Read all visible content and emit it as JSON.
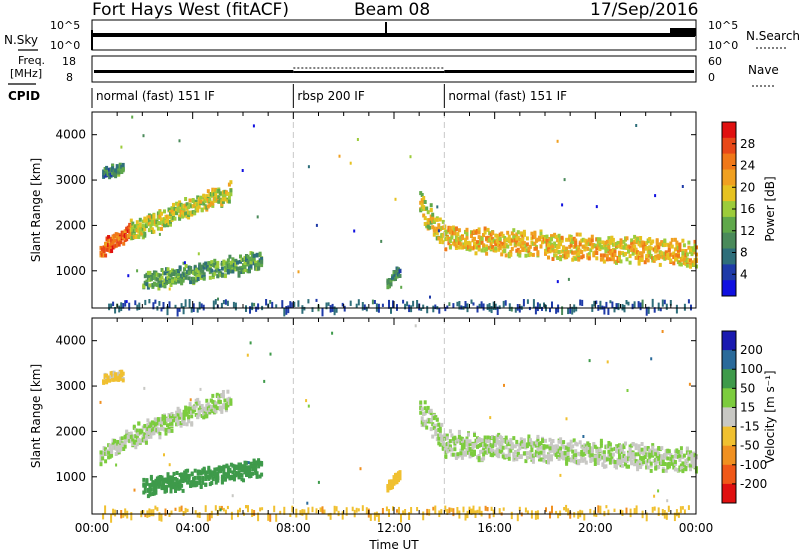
{
  "header": {
    "station": "Fort Hays West (fitACF)",
    "beam": "Beam 08",
    "date": "17/Sep/2016"
  },
  "top_panel": {
    "nsky_label": "N.Sky",
    "nsky_ticks": [
      "10^5",
      "10^0"
    ],
    "nsearch_label": "N.Search",
    "nsearch_ticks": [
      "10^5",
      "10^0"
    ],
    "freq_label": [
      "Freq.",
      "[MHz]"
    ],
    "freq_ticks": [
      "18",
      "8"
    ],
    "nave_label": "Nave",
    "nave_ticks": [
      "60",
      "0"
    ],
    "cpid_label": "CPID"
  },
  "cpid_segments": [
    {
      "start_h": 0,
      "end_h": 8,
      "label": "normal (fast) 151 IF"
    },
    {
      "start_h": 8,
      "end_h": 14,
      "label": "rbsp 200 IF"
    },
    {
      "start_h": 14,
      "end_h": 24,
      "label": "normal (fast) 151 IF"
    }
  ],
  "chart_data": [
    {
      "type": "heatmap",
      "panel": "power",
      "xlabel": "",
      "ylabel": "Slant Range [km]",
      "ylim": [
        180,
        4500
      ],
      "xlim_hours": [
        0,
        24
      ],
      "yticks": [
        1000,
        2000,
        3000,
        4000
      ],
      "colorbar": {
        "label": "Power [dB]",
        "range": [
          0,
          32
        ],
        "ticks": [
          4,
          8,
          12,
          16,
          20,
          24,
          28
        ],
        "colors": [
          "#1010e0",
          "#1e3aa8",
          "#2e6e7a",
          "#4a8a5a",
          "#5fa84a",
          "#9ccc3a",
          "#e6c220",
          "#f0a020",
          "#f07818",
          "#e84818",
          "#e01010"
        ]
      },
      "echo_regions": [
        {
          "from_h": 0.3,
          "to_h": 1.5,
          "r_start": 1500,
          "r_end": 1900,
          "half_width": 150,
          "value": 26
        },
        {
          "from_h": 1.5,
          "to_h": 5.5,
          "r_start": 1900,
          "r_end": 2800,
          "half_width": 200,
          "value": 17
        },
        {
          "from_h": 0.4,
          "to_h": 1.2,
          "r_start": 3200,
          "r_end": 3300,
          "half_width": 90,
          "value": 10
        },
        {
          "from_h": 2.0,
          "to_h": 6.7,
          "r_start": 800,
          "r_end": 1250,
          "half_width": 170,
          "value": 12
        },
        {
          "from_h": 11.7,
          "to_h": 12.2,
          "r_start": 800,
          "r_end": 1050,
          "half_width": 100,
          "value": 10
        },
        {
          "from_h": 13.0,
          "to_h": 14.0,
          "r_start": 2500,
          "r_end": 1800,
          "half_width": 280,
          "value": 18
        },
        {
          "from_h": 14.0,
          "to_h": 24.0,
          "r_start": 1750,
          "r_end": 1400,
          "half_width": 250,
          "value": 20
        }
      ],
      "ground_scatter_band": {
        "from_h": 0,
        "to_h": 24,
        "r_max": 380,
        "value": 6
      }
    },
    {
      "type": "heatmap",
      "panel": "velocity",
      "xlabel": "Time UT",
      "ylabel": "Slant Range [km]",
      "ylim": [
        180,
        4500
      ],
      "xlim_hours": [
        0,
        24
      ],
      "yticks": [
        1000,
        2000,
        3000,
        4000
      ],
      "xticks": [
        "00:00",
        "04:00",
        "08:00",
        "12:00",
        "16:00",
        "20:00",
        "00:00"
      ],
      "colorbar": {
        "label": "Velocity [m s^-1]",
        "ticks": [
          200,
          100,
          50,
          15,
          -15,
          -50,
          -100,
          -200
        ],
        "colors": [
          "#1a1ab0",
          "#2a6a9a",
          "#3e9a4a",
          "#7ccc3e",
          "#c8c8c4",
          "#f0c030",
          "#f09020",
          "#f05818",
          "#e01010"
        ]
      },
      "echo_regions": [
        {
          "from_h": 0.3,
          "to_h": 1.5,
          "r_start": 1500,
          "r_end": 1900,
          "half_width": 150,
          "value": 0
        },
        {
          "from_h": 1.5,
          "to_h": 5.5,
          "r_start": 1900,
          "r_end": 2800,
          "half_width": 200,
          "value": 0
        },
        {
          "from_h": 0.4,
          "to_h": 1.2,
          "r_start": 3200,
          "r_end": 3300,
          "half_width": 90,
          "value": -40
        },
        {
          "from_h": 2.0,
          "to_h": 6.7,
          "r_start": 800,
          "r_end": 1250,
          "half_width": 170,
          "value": 60
        },
        {
          "from_h": 11.7,
          "to_h": 12.2,
          "r_start": 800,
          "r_end": 1050,
          "half_width": 100,
          "value": -60
        },
        {
          "from_h": 13.0,
          "to_h": 14.0,
          "r_start": 2500,
          "r_end": 1800,
          "half_width": 280,
          "value": 0
        },
        {
          "from_h": 14.0,
          "to_h": 24.0,
          "r_start": 1750,
          "r_end": 1400,
          "half_width": 250,
          "value": 0
        }
      ],
      "ground_scatter_band": {
        "from_h": 0,
        "to_h": 24,
        "r_max": 380,
        "value": -60
      }
    }
  ]
}
